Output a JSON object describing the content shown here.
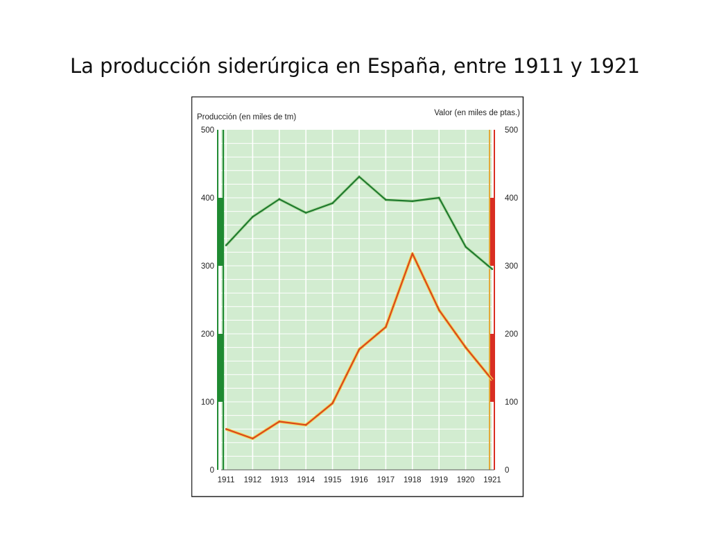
{
  "title": "La producción siderúrgica en España, entre 1911 y 1921",
  "chart_data": {
    "type": "line",
    "ylabel_left": "Producción (en miles de tm)",
    "ylabel_right": "Valor (en miles de ptas.)",
    "x": [
      "1911",
      "1912",
      "1913",
      "1914",
      "1915",
      "1916",
      "1917",
      "1918",
      "1919",
      "1920",
      "1921"
    ],
    "series": [
      {
        "values": [
          330,
          372,
          398,
          378,
          392,
          431,
          397,
          395,
          400,
          328,
          295
        ],
        "axis": "left",
        "color": "#1f7a2e"
      },
      {
        "values": [
          60,
          46,
          71,
          66,
          98,
          177,
          210,
          318,
          235,
          180,
          132
        ],
        "axis": "right",
        "color": "#d9471c"
      }
    ],
    "ylim_left": [
      0,
      500
    ],
    "ylim_right": [
      0,
      500
    ],
    "yticks_left": [
      "0",
      "100",
      "200",
      "300",
      "400",
      "500"
    ],
    "yticks_right": [
      "0",
      "100",
      "200",
      "300",
      "400",
      "500"
    ],
    "grid": true,
    "background_color": "#d2ecd0",
    "left_axis_color": "#1f8a32",
    "right_axis_color": "#d92e22"
  }
}
